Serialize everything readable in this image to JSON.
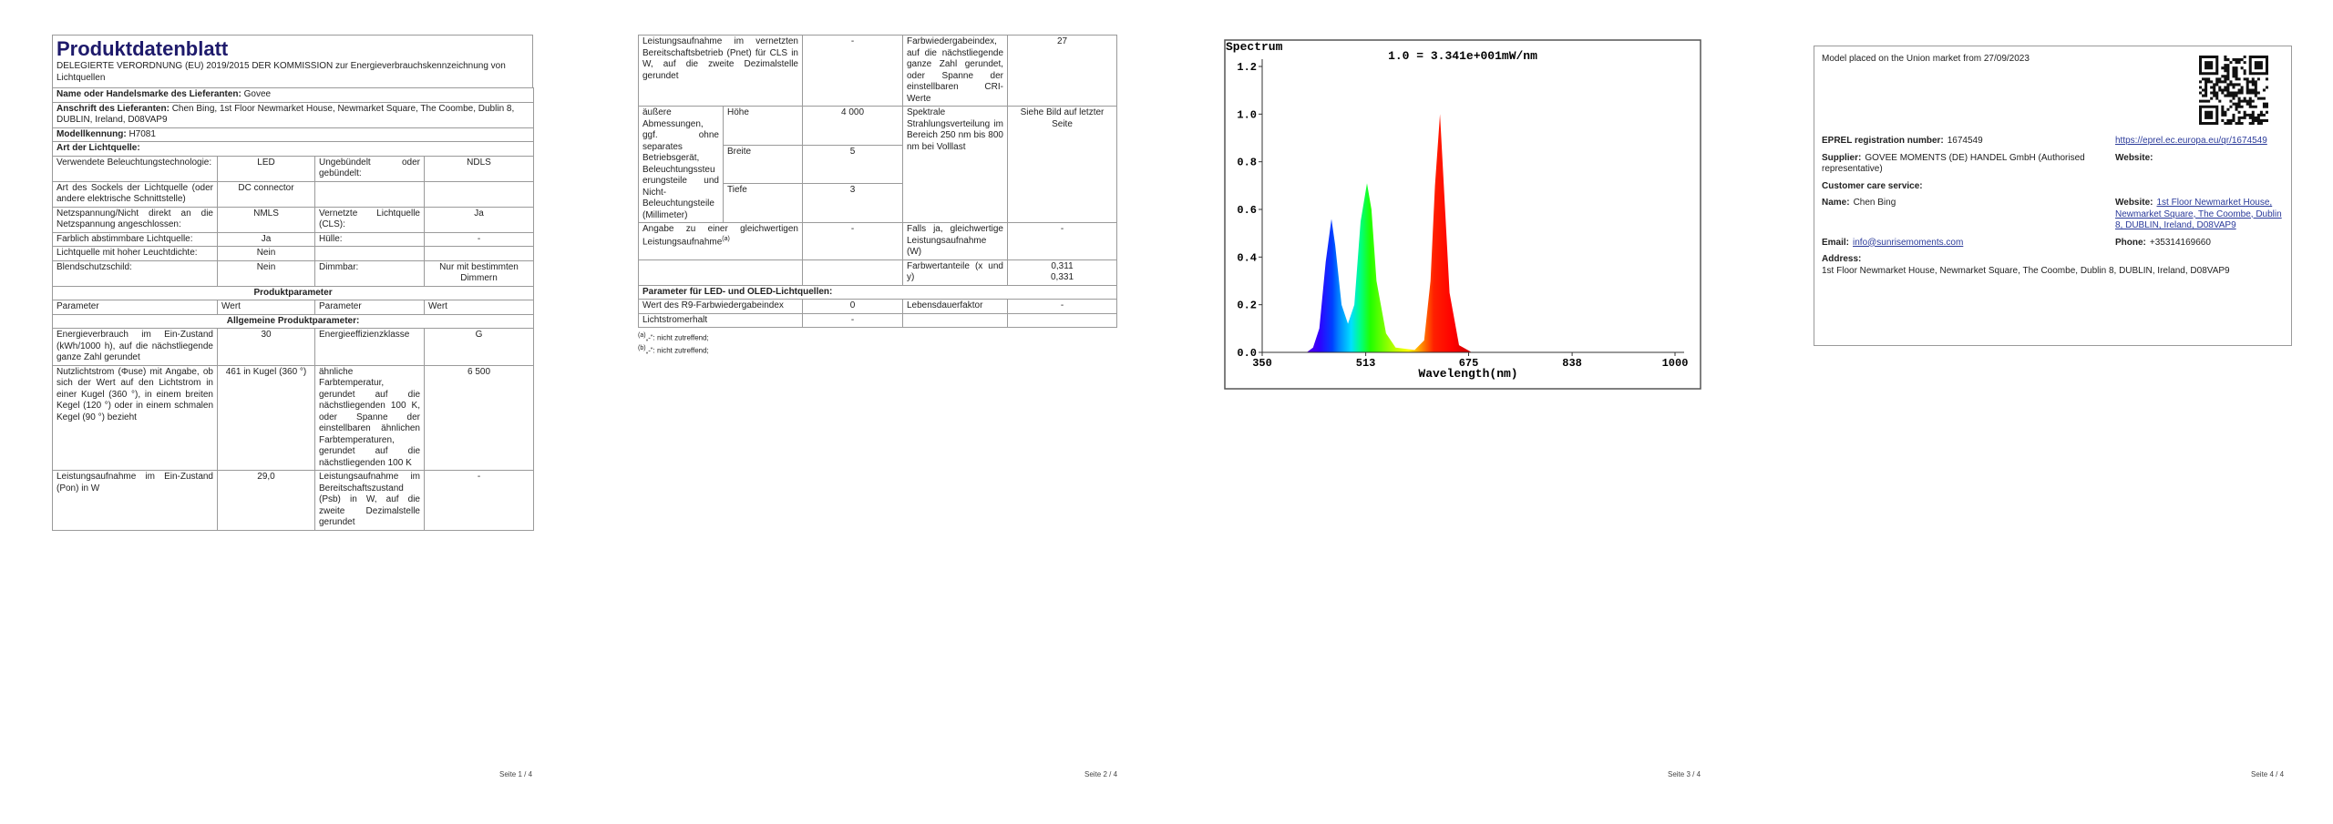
{
  "document": {
    "page1": {
      "title": "Produktdatenblatt",
      "subtitle": "DELEGIERTE VERORDNUNG (EU) 2019/2015 DER KOMMISSION zur Energieverbrauchskennzeichnung von Lichtquellen",
      "supplier": {
        "label": "Name oder Handelsmarke des Lieferanten:",
        "value": "Govee"
      },
      "address": {
        "label": "Anschrift des Lieferanten:",
        "value": "Chen Bing, 1st Floor Newmarket House, Newmarket Square, The Coombe, Dublin 8, DUBLIN, Ireland, D08VAP9"
      },
      "model": {
        "label": "Modellkennung:",
        "value": "H7081"
      },
      "light_source_heading": "Art der Lichtquelle:",
      "light_rows": [
        [
          "Verwendete Beleuchtungstechnologie:",
          "LED",
          "Ungebündelt oder gebündelt:",
          "NDLS"
        ],
        [
          "Art des Sockels der Lichtquelle (oder andere elektrische Schnittstelle)",
          "DC connector"
        ],
        [
          "Netzspannung/Nicht direkt an die Netzspannung angeschlossen:",
          "NMLS",
          "Vernetzte Lichtquelle (CLS):",
          "Ja"
        ],
        [
          "Farblich abstimmbare Lichtquelle:",
          "Ja",
          "Hülle:",
          "-"
        ],
        [
          "Lichtquelle mit hoher Leuchtdichte:",
          "Nein"
        ],
        [
          "Blendschutzschild:",
          "Nein",
          "Dimmbar:",
          "Nur mit bestimmten Dimmern"
        ]
      ],
      "product_parameters_heading": "Produktparameter",
      "parameter_header": [
        "Parameter",
        "Wert",
        "Parameter",
        "Wert"
      ],
      "general_heading": "Allgemeine Produktparameter:",
      "parameter_rows": [
        [
          "Energieverbrauch im Ein-Zustand (kWh/1000 h), auf die nächstliegende ganze Zahl gerundet",
          "30",
          "Energieeffizienzklasse",
          "G"
        ],
        [
          "Nutzlichtstrom (Φuse) mit Angabe, ob sich der Wert auf den Lichtstrom in einer Kugel (360 °), in einem breiten Kegel (120 °) oder in einem schmalen Kegel (90 °) bezieht",
          "461 in Kugel (360 °)",
          "ähnliche Farbtemperatur, gerundet auf die nächstliegenden 100 K, oder Spanne der einstellbaren ähnlichen Farbtemperaturen, gerundet auf die nächstliegenden 100 K",
          "6 500"
        ],
        [
          "Leistungsaufnahme im Ein-Zustand (Pon) in W",
          "29,0",
          "Leistungsaufnahme im Bereitschaftszustand (Psb) in W, auf die zweite Dezimalstelle gerundet",
          "-"
        ]
      ],
      "footer": "Seite 1 / 4"
    },
    "page2": {
      "rows": [
        [
          "Leistungsaufnahme im vernetzten Bereitschaftsbetrieb (Pnet) für CLS in W, auf die zweite Dezimalstelle gerundet",
          "-",
          "Farbwiedergabeindex, auf die nächstliegende ganze Zahl gerundet, oder Spanne der einstellbaren CRI-Werte",
          "27"
        ]
      ],
      "dimensions": {
        "label": "äußere Abmessungen, ggf. ohne separates Betriebsgerät, Beleuchtungssteuerungsteile und Nicht-Beleuchtungsteile (Millimeter)",
        "items": [
          [
            "Höhe",
            "4 000"
          ],
          [
            "Breite",
            "5"
          ],
          [
            "Tiefe",
            "3"
          ]
        ],
        "spectral_label": "Spektrale Strahlungsverteilung im Bereich 250 nm bis 800 nm bei Volllast",
        "spectral_value": "Siehe Bild auf letzter Seite"
      },
      "equivalent": {
        "label": "Angabe zu einer gleichwertigen Leistungsaufnahme",
        "ref": "(a)",
        "value": "-",
        "followup": "Falls ja, gleichwertige Leistungsaufnahme (W)",
        "followup_value": "-"
      },
      "chromaticity": {
        "label": "Farbwertanteile (x und y)",
        "x": "0,311",
        "y": "0,331"
      },
      "led_heading": "Parameter für LED- und OLED-Lichtquellen:",
      "led_rows": [
        [
          "Wert des R9-Farbwiedergabeindex",
          "0",
          "Lebensdauerfaktor",
          "-"
        ],
        [
          "Lichtstromerhalt",
          "-"
        ]
      ],
      "notes": [
        {
          "ref": "(a)",
          "text": "„-“: nicht zutreffend;"
        },
        {
          "ref": "(b)",
          "text": "„-“: nicht zutreffend;"
        }
      ],
      "footer": "Seite 2 / 4"
    },
    "page3": {
      "footer": "Seite 3 / 4"
    },
    "page4": {
      "market_date": "Model placed on the Union market from 27/09/2023",
      "registration": {
        "label": "EPREL registration number:",
        "value": "1674549"
      },
      "link": "https://eprel.ec.europa.eu/qr/1674549",
      "supplier": {
        "label": "Supplier:",
        "value": "GOVEE MOMENTS (DE) HANDEL GmbH (Authorised representative)"
      },
      "supplier_website_label": "Website:",
      "customer_care": "Customer care service:",
      "name": {
        "label": "Name:",
        "value": "Chen Bing"
      },
      "website": {
        "label": "Website:",
        "value": "1st Floor Newmarket House, Newmarket Square, The Coombe, Dublin 8, DUBLIN, Ireland, D08VAP9"
      },
      "email": {
        "label": "Email:",
        "value": "info@sunrisemoments.com"
      },
      "phone": {
        "label": "Phone:",
        "value": "+35314169660"
      },
      "address": {
        "label": "Address:",
        "value": "1st Floor Newmarket House, Newmarket Square, The Coombe, Dublin 8, DUBLIN, Ireland, D08VAP9"
      },
      "footer": "Seite 4 / 4"
    }
  },
  "chart_data": {
    "type": "area",
    "title": "Spectrum",
    "annotation": "1.0 = 3.341e+001mW/nm",
    "x_label": "Wavelength(nm)",
    "x": [
      350,
      420,
      430,
      440,
      450,
      459,
      465,
      475,
      485,
      495,
      505,
      515,
      522,
      530,
      545,
      560,
      590,
      605,
      615,
      622,
      630,
      636,
      645,
      660,
      680,
      1000
    ],
    "values": [
      0,
      0,
      0.02,
      0.1,
      0.38,
      0.56,
      0.45,
      0.2,
      0.12,
      0.2,
      0.55,
      0.71,
      0.6,
      0.3,
      0.08,
      0.02,
      0.01,
      0.05,
      0.3,
      0.7,
      1.0,
      0.7,
      0.25,
      0.03,
      0,
      0
    ],
    "xlim": [
      350,
      1000
    ],
    "ylim": [
      0,
      1.2
    ],
    "xticks": [
      350,
      513,
      675,
      838,
      1000
    ],
    "yticks": [
      {
        "value": 0,
        "label": "0.0"
      },
      0.2,
      0.4,
      0.6,
      0.8,
      {
        "value": 1,
        "label": "1.0"
      },
      1.2
    ]
  }
}
